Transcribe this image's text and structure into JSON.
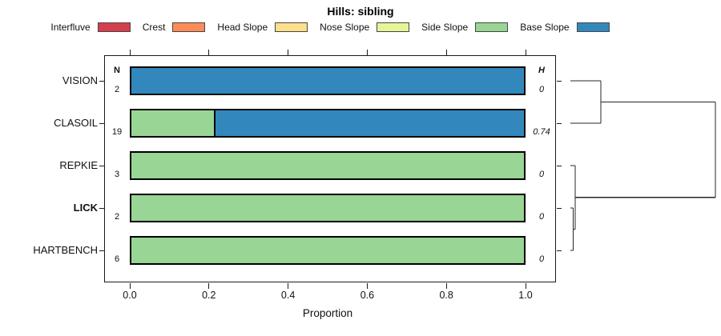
{
  "chart_data": {
    "type": "bar",
    "title": "Hills: sibling",
    "xlabel": "Proportion",
    "orientation": "horizontal-stacked",
    "xlim": [
      0,
      1
    ],
    "grid": false,
    "legend_position": "top",
    "columns": {
      "n_header": "N",
      "h_header": "H"
    },
    "categories": [
      "Interfluve",
      "Crest",
      "Head Slope",
      "Nose Slope",
      "Side Slope",
      "Base Slope"
    ],
    "colors": {
      "Interfluve": "#D53E4F",
      "Crest": "#FC8D59",
      "Head Slope": "#FEE08B",
      "Nose Slope": "#E6F598",
      "Side Slope": "#99D594",
      "Base Slope": "#3288BD"
    },
    "x_ticks": [
      {
        "label": "0.0",
        "value": 0.0
      },
      {
        "label": "0.2",
        "value": 0.2
      },
      {
        "label": "0.4",
        "value": 0.4
      },
      {
        "label": "0.6",
        "value": 0.6
      },
      {
        "label": "0.8",
        "value": 0.8
      },
      {
        "label": "1.0",
        "value": 1.0
      }
    ],
    "rows": [
      {
        "label": "VISION",
        "bold": false,
        "n": 2,
        "h": "0",
        "segments": [
          {
            "category": "Base Slope",
            "value": 1.0
          }
        ]
      },
      {
        "label": "CLASOIL",
        "bold": false,
        "n": 19,
        "h": "0.74",
        "segments": [
          {
            "category": "Side Slope",
            "value": 0.21
          },
          {
            "category": "Base Slope",
            "value": 0.79
          }
        ]
      },
      {
        "label": "REPKIE",
        "bold": false,
        "n": 3,
        "h": "0",
        "segments": [
          {
            "category": "Side Slope",
            "value": 1.0
          }
        ]
      },
      {
        "label": "LICK",
        "bold": true,
        "n": 2,
        "h": "0",
        "segments": [
          {
            "category": "Side Slope",
            "value": 1.0
          }
        ]
      },
      {
        "label": "HARTBENCH",
        "bold": false,
        "n": 6,
        "h": "0",
        "segments": [
          {
            "category": "Side Slope",
            "value": 1.0
          }
        ]
      }
    ],
    "dendrogram": {
      "leaves": [
        "VISION",
        "CLASOIL",
        "REPKIE",
        "LICK",
        "HARTBENCH"
      ],
      "merges": [
        {
          "id": "m1",
          "children": [
            "LICK",
            "HARTBENCH"
          ],
          "height": 0.02
        },
        {
          "id": "m2",
          "children": [
            "REPKIE",
            "m1"
          ],
          "height": 0.033
        },
        {
          "id": "m3",
          "children": [
            "VISION",
            "CLASOIL"
          ],
          "height": 0.21
        },
        {
          "id": "root",
          "children": [
            "m3",
            "m2"
          ],
          "height": 1.0
        }
      ]
    }
  },
  "legend": {
    "items": [
      {
        "label": "Interfluve",
        "color": "#D53E4F"
      },
      {
        "label": "Crest",
        "color": "#FC8D59"
      },
      {
        "label": "Head Slope",
        "color": "#FEE08B"
      },
      {
        "label": "Nose Slope",
        "color": "#E6F598"
      },
      {
        "label": "Side Slope",
        "color": "#99D594"
      },
      {
        "label": "Base Slope",
        "color": "#3288BD"
      }
    ]
  }
}
